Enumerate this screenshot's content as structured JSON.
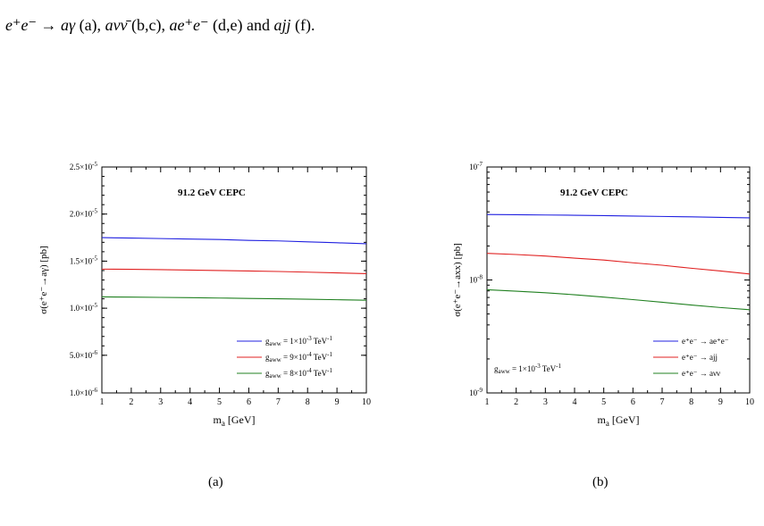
{
  "caption_top": {
    "m1": "e⁺e⁻ → aγ",
    "t1": " (a), ",
    "m2": "aνν̄",
    "t2": " (b,c), ",
    "m3": "ae⁺e⁻",
    "t3": " (d,e) and ",
    "m4": "ajj",
    "t4": " (f)."
  },
  "chart_data": [
    {
      "type": "line",
      "panel_label": "(a)",
      "annotation": "91.2 GeV  CEPC",
      "xlabel_base": "m",
      "xlabel_sub": "a",
      "xlabel_unit": " [GeV]",
      "ylabel": "σ(e⁺e⁻→aγ) [pb]",
      "xlim": [
        1,
        10
      ],
      "ylim": [
        1e-06,
        2.5e-05
      ],
      "yscale": "linear",
      "x_ticks": [
        1,
        2,
        3,
        4,
        5,
        6,
        7,
        8,
        9,
        10
      ],
      "y_ticks": [
        {
          "value": 1e-06,
          "m": "1.0×10",
          "e": "-6"
        },
        {
          "value": 5e-06,
          "m": "5.0×10",
          "e": "-6"
        },
        {
          "value": 1e-05,
          "m": "1.0×10",
          "e": "-5"
        },
        {
          "value": 1.5e-05,
          "m": "1.5×10",
          "e": "-5"
        },
        {
          "value": 2e-05,
          "m": "2.0×10",
          "e": "-5"
        },
        {
          "value": 2.5e-05,
          "m": "2.5×10",
          "e": "-5"
        }
      ],
      "legend_position": "bottom-right",
      "x": [
        1,
        2,
        3,
        4,
        5,
        6,
        7,
        8,
        9,
        10
      ],
      "series": [
        {
          "color": "#2020e0",
          "legend": {
            "s": "g",
            "sub": "aww",
            "eq": " = 1×10",
            "e1": "-3",
            "u": " TeV",
            "e2": "-1"
          },
          "values": [
            1.75e-05,
            1.745e-05,
            1.74e-05,
            1.735e-05,
            1.73e-05,
            1.72e-05,
            1.715e-05,
            1.705e-05,
            1.695e-05,
            1.685e-05
          ]
        },
        {
          "color": "#e02020",
          "legend": {
            "s": "g",
            "sub": "aww",
            "eq": " = 9×10",
            "e1": "-4",
            "u": " TeV",
            "e2": "-1"
          },
          "values": [
            1.415e-05,
            1.413e-05,
            1.41e-05,
            1.405e-05,
            1.4e-05,
            1.395e-05,
            1.39e-05,
            1.383e-05,
            1.375e-05,
            1.367e-05
          ]
        },
        {
          "color": "#208020",
          "legend": {
            "s": "g",
            "sub": "aww",
            "eq": " = 8×10",
            "e1": "-4",
            "u": " TeV",
            "e2": "-1"
          },
          "values": [
            1.12e-05,
            1.118e-05,
            1.115e-05,
            1.112e-05,
            1.108e-05,
            1.104e-05,
            1.1e-05,
            1.095e-05,
            1.09e-05,
            1.085e-05
          ]
        }
      ]
    },
    {
      "type": "line",
      "panel_label": "(b)",
      "annotation": "91.2 GeV  CEPC",
      "xlabel_base": "m",
      "xlabel_sub": "a",
      "xlabel_unit": " [GeV]",
      "ylabel": "σ(e⁺e⁻→axx) [pb]",
      "xlim": [
        1,
        10
      ],
      "ylim": [
        1e-09,
        1e-07
      ],
      "yscale": "log",
      "x_ticks": [
        1,
        2,
        3,
        4,
        5,
        6,
        7,
        8,
        9,
        10
      ],
      "y_ticks": [
        {
          "value": 1e-09,
          "m": "10",
          "e": "-9"
        },
        {
          "value": 1e-08,
          "m": "10",
          "e": "-8"
        },
        {
          "value": 1e-07,
          "m": "10",
          "e": "-7"
        }
      ],
      "coupling_note": {
        "s": "g",
        "sub": "aww",
        "eq": " = 1×10",
        "e1": "-3",
        "u": " TeV",
        "e2": "-1"
      },
      "legend_position": "bottom-right",
      "x": [
        1,
        2,
        3,
        4,
        5,
        6,
        7,
        8,
        9,
        10
      ],
      "series": [
        {
          "color": "#2020e0",
          "legend_text": "e⁺e⁻ → ae⁺e⁻",
          "values": [
            3.8e-08,
            3.78e-08,
            3.76e-08,
            3.74e-08,
            3.71e-08,
            3.68e-08,
            3.65e-08,
            3.62e-08,
            3.58e-08,
            3.55e-08
          ]
        },
        {
          "color": "#e02020",
          "legend_text": "e⁺e⁻ → ajj",
          "values": [
            1.72e-08,
            1.68e-08,
            1.63e-08,
            1.56e-08,
            1.5e-08,
            1.42e-08,
            1.35e-08,
            1.27e-08,
            1.2e-08,
            1.13e-08
          ]
        },
        {
          "color": "#208020",
          "legend_text": "e⁺e⁻ → aνν",
          "values": [
            8.2e-09,
            7.95e-09,
            7.7e-09,
            7.4e-09,
            7.05e-09,
            6.7e-09,
            6.35e-09,
            6e-09,
            5.7e-09,
            5.45e-09
          ]
        }
      ]
    }
  ]
}
